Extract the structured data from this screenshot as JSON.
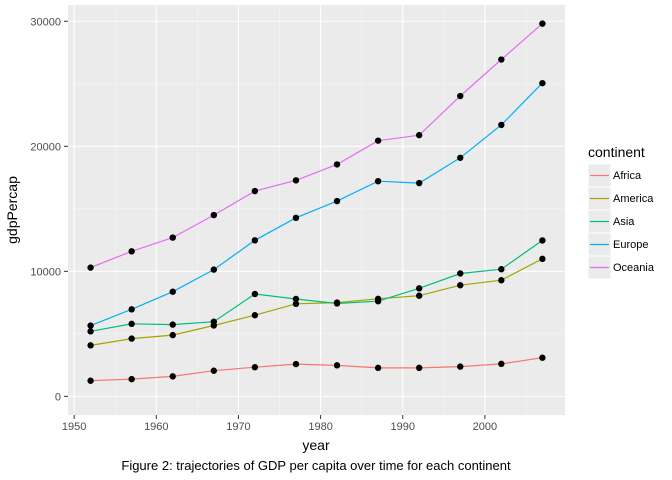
{
  "chart_data": {
    "type": "line",
    "title": "",
    "xlabel": "year",
    "ylabel": "gdpPercap",
    "caption": "Figure 2: trajectories of GDP per capita over time for each continent",
    "xlim": [
      1950,
      2010
    ],
    "ylim": [
      0,
      30000
    ],
    "x_ticks": [
      1950,
      1960,
      1970,
      1980,
      1990,
      2000
    ],
    "y_ticks": [
      0,
      10000,
      20000,
      30000
    ],
    "grid": true,
    "legend": {
      "title": "continent",
      "placement": "right"
    },
    "x": [
      1952,
      1957,
      1962,
      1967,
      1972,
      1977,
      1982,
      1987,
      1992,
      1997,
      2002,
      2007
    ],
    "series": [
      {
        "name": "Africa",
        "color": "#F8766D",
        "values": [
          1250,
          1380,
          1600,
          2050,
          2330,
          2580,
          2480,
          2280,
          2280,
          2380,
          2600,
          3090
        ]
      },
      {
        "name": "America",
        "color": "#A3A500",
        "values": [
          4080,
          4620,
          4900,
          5670,
          6490,
          7400,
          7500,
          7800,
          8050,
          8890,
          9290,
          11000
        ]
      },
      {
        "name": "Asia",
        "color": "#00BF7D",
        "values": [
          5200,
          5800,
          5740,
          5970,
          8190,
          7790,
          7430,
          7610,
          8640,
          9830,
          10170,
          12470
        ]
      },
      {
        "name": "Europe",
        "color": "#00B0F6",
        "values": [
          5660,
          6960,
          8370,
          10140,
          12480,
          14280,
          15620,
          17210,
          17060,
          19080,
          21710,
          25050
        ]
      },
      {
        "name": "Oceania",
        "color": "#E76BF3",
        "values": [
          10300,
          11600,
          12700,
          14500,
          16420,
          17280,
          18550,
          20450,
          20890,
          24020,
          26940,
          29810
        ]
      }
    ]
  }
}
